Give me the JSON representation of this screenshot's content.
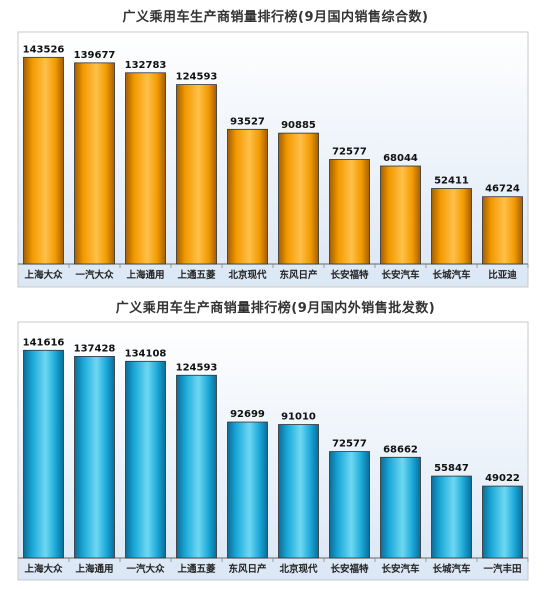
{
  "chart_data": [
    {
      "type": "bar",
      "title": "广义乘用车生产商销量排行榜(9月国内销售综合数)",
      "categories": [
        "上海大众",
        "一汽大众",
        "上海通用",
        "上通五菱",
        "北京现代",
        "东风日产",
        "长安福特",
        "长安汽车",
        "长城汽车",
        "比亚迪"
      ],
      "values": [
        143526,
        139677,
        132783,
        124593,
        93527,
        90885,
        72577,
        68044,
        52411,
        46724
      ],
      "ylim": [
        0,
        150000
      ],
      "grid": false,
      "colors": {
        "bar_light": "#ffc04a",
        "bar": "#f29a00",
        "bar_dark": "#a35e00",
        "background_top": "#ffffff",
        "background_bottom": "#dbe7f5"
      }
    },
    {
      "type": "bar",
      "title": "广义乘用车生产商销量排行榜(9月国内外销售批发数)",
      "categories": [
        "上海大众",
        "上海通用",
        "一汽大众",
        "上通五菱",
        "东风日产",
        "北京现代",
        "长安福特",
        "长安汽车",
        "长城汽车",
        "一汽丰田"
      ],
      "values": [
        141616,
        137428,
        134108,
        124593,
        92699,
        91010,
        72577,
        68662,
        55847,
        49022
      ],
      "ylim": [
        0,
        150000
      ],
      "grid": false,
      "colors": {
        "bar_light": "#6fd8f3",
        "bar": "#1aa8d8",
        "bar_dark": "#0a6c98",
        "background_top": "#ffffff",
        "background_bottom": "#dbe7f5"
      }
    }
  ]
}
